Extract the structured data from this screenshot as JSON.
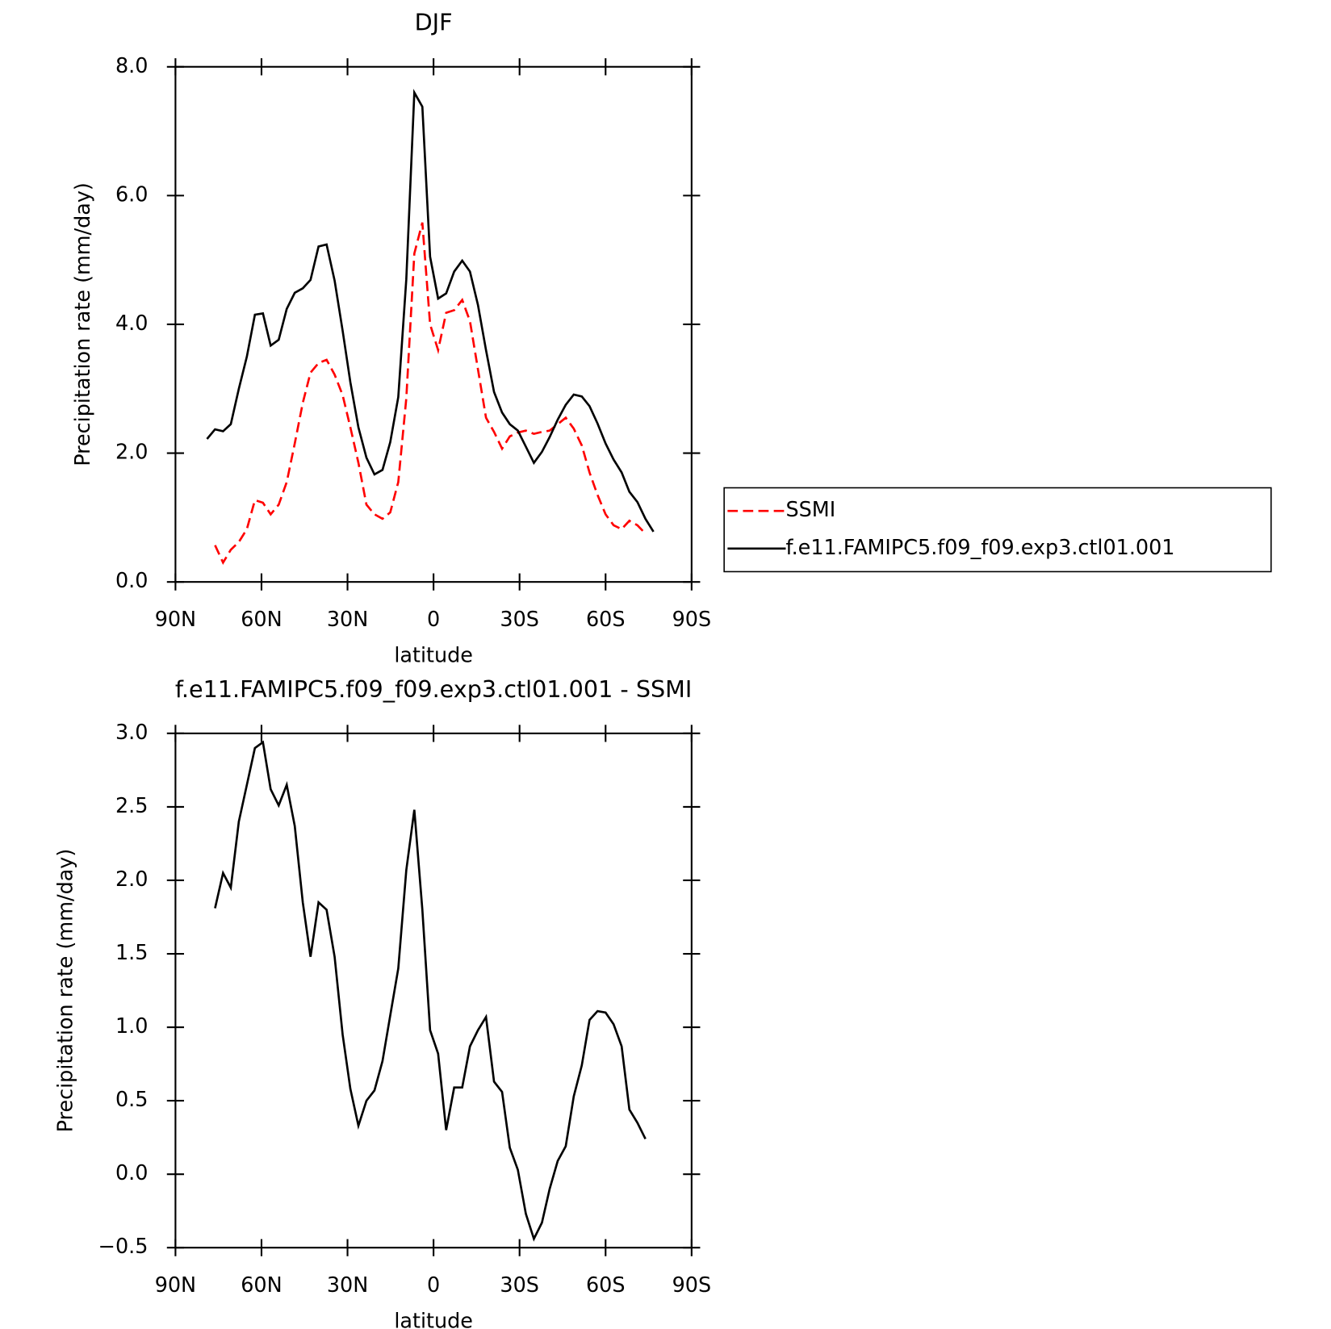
{
  "chart_data": [
    {
      "type": "line",
      "title": "DJF",
      "x_label": "latitude",
      "y_label": "Precipitation rate (mm/day)",
      "x": [
        79.0,
        76.2,
        73.4,
        70.7,
        67.9,
        65.1,
        62.3,
        59.5,
        56.8,
        54.0,
        51.2,
        48.4,
        45.6,
        42.9,
        40.1,
        37.3,
        34.5,
        31.7,
        29.0,
        26.2,
        23.4,
        20.6,
        17.8,
        15.1,
        12.3,
        9.5,
        6.7,
        3.9,
        1.2,
        -1.6,
        -4.4,
        -7.2,
        -10.0,
        -12.7,
        -15.5,
        -18.3,
        -21.1,
        -23.9,
        -26.6,
        -29.4,
        -32.2,
        -35.0,
        -37.8,
        -40.5,
        -43.3,
        -46.1,
        -48.9,
        -51.7,
        -54.4,
        -57.2,
        -60.0,
        -62.8,
        -65.6,
        -68.3,
        -71.1,
        -73.9,
        -76.7
      ],
      "series": [
        {
          "name": "SSMI",
          "color": "#ff0000",
          "dashed": true,
          "values": [
            null,
            0.57,
            0.3,
            0.5,
            0.62,
            0.82,
            1.27,
            1.23,
            1.05,
            1.2,
            1.55,
            2.15,
            2.78,
            3.25,
            3.4,
            3.45,
            3.22,
            2.9,
            2.4,
            1.85,
            1.2,
            1.05,
            0.98,
            1.08,
            1.55,
            2.85,
            5.1,
            5.58,
            4.0,
            3.6,
            4.18,
            4.22,
            4.38,
            4.05,
            3.3,
            2.55,
            2.33,
            2.07,
            2.26,
            2.32,
            2.35,
            2.3,
            2.33,
            2.35,
            2.45,
            2.55,
            2.38,
            2.12,
            1.7,
            1.35,
            1.05,
            0.88,
            0.82,
            0.95,
            0.88,
            0.75,
            null
          ]
        },
        {
          "name": "f.e11.FAMIPC5.f09_f09.exp3.ctl01.001",
          "color": "#000000",
          "dashed": false,
          "values": [
            2.22,
            2.37,
            2.34,
            2.45,
            3.0,
            3.5,
            4.15,
            4.17,
            3.67,
            3.76,
            4.24,
            4.49,
            4.56,
            4.69,
            5.21,
            5.24,
            4.68,
            3.9,
            3.1,
            2.4,
            1.93,
            1.67,
            1.74,
            2.17,
            2.87,
            4.7,
            7.6,
            7.38,
            5.05,
            4.4,
            4.48,
            4.82,
            4.99,
            4.82,
            4.3,
            3.6,
            2.95,
            2.63,
            2.45,
            2.35,
            2.1,
            1.85,
            2.02,
            2.25,
            2.52,
            2.75,
            2.91,
            2.88,
            2.73,
            2.46,
            2.15,
            1.9,
            1.7,
            1.4,
            1.24,
            0.98,
            0.78
          ]
        }
      ],
      "xlim": [
        90,
        -90
      ],
      "xticks": [
        {
          "value": 90,
          "label": "90N"
        },
        {
          "value": 60,
          "label": "60N"
        },
        {
          "value": 30,
          "label": "30N"
        },
        0,
        {
          "value": -30,
          "label": "30S"
        },
        {
          "value": -60,
          "label": "60S"
        },
        {
          "value": -90,
          "label": "90S"
        }
      ],
      "ylim": [
        0,
        8
      ],
      "yticks": [
        {
          "value": 0,
          "label": "0.0"
        },
        {
          "value": 2,
          "label": "2.0"
        },
        {
          "value": 4,
          "label": "4.0"
        },
        {
          "value": 6,
          "label": "6.0"
        },
        {
          "value": 8,
          "label": "8.0"
        }
      ],
      "legend": "right"
    },
    {
      "type": "line",
      "title": "f.e11.FAMIPC5.f09_f09.exp3.ctl01.001 - SSMI",
      "x_label": "latitude",
      "y_label": "Precipitation rate (mm/day)",
      "x": [
        79.0,
        76.2,
        73.4,
        70.7,
        67.9,
        65.1,
        62.3,
        59.5,
        56.8,
        54.0,
        51.2,
        48.4,
        45.6,
        42.9,
        40.1,
        37.3,
        34.5,
        31.7,
        29.0,
        26.2,
        23.4,
        20.6,
        17.8,
        15.1,
        12.3,
        9.5,
        6.7,
        3.9,
        1.2,
        -1.6,
        -4.4,
        -7.2,
        -10.0,
        -12.7,
        -15.5,
        -18.3,
        -21.1,
        -23.9,
        -26.6,
        -29.4,
        -32.2,
        -35.0,
        -37.8,
        -40.5,
        -43.3,
        -46.1,
        -48.9,
        -51.7,
        -54.4,
        -57.2,
        -60.0,
        -62.8,
        -65.6,
        -68.3,
        -71.1,
        -73.9,
        -76.7
      ],
      "series": [
        {
          "color": "#000000",
          "dashed": false,
          "values": [
            null,
            1.81,
            2.05,
            1.95,
            2.4,
            2.65,
            2.9,
            2.94,
            2.62,
            2.51,
            2.65,
            2.37,
            1.85,
            1.48,
            1.85,
            1.8,
            1.48,
            0.95,
            0.58,
            0.33,
            0.5,
            0.57,
            0.77,
            1.08,
            1.4,
            2.07,
            2.48,
            1.8,
            0.98,
            0.82,
            0.3,
            0.59,
            0.59,
            0.87,
            0.98,
            1.07,
            0.63,
            0.56,
            0.18,
            0.03,
            -0.27,
            -0.44,
            -0.33,
            -0.1,
            0.09,
            0.19,
            0.53,
            0.74,
            1.05,
            1.11,
            1.1,
            1.02,
            0.87,
            0.44,
            0.35,
            0.24,
            null
          ]
        }
      ],
      "xlim": [
        90,
        -90
      ],
      "xticks": [
        {
          "value": 90,
          "label": "90N"
        },
        {
          "value": 60,
          "label": "60N"
        },
        {
          "value": 30,
          "label": "30N"
        },
        0,
        {
          "value": -30,
          "label": "30S"
        },
        {
          "value": -60,
          "label": "60S"
        },
        {
          "value": -90,
          "label": "90S"
        }
      ],
      "ylim": [
        -0.5,
        3
      ],
      "yticks": [
        {
          "value": -0.5,
          "label": "−0.5"
        },
        {
          "value": 0,
          "label": "0.0"
        },
        {
          "value": 0.5,
          "label": "0.5"
        },
        {
          "value": 1,
          "label": "1.0"
        },
        {
          "value": 1.5,
          "label": "1.5"
        },
        {
          "value": 2,
          "label": "2.0"
        },
        {
          "value": 2.5,
          "label": "2.5"
        },
        {
          "value": 3,
          "label": "3.0"
        }
      ]
    }
  ]
}
